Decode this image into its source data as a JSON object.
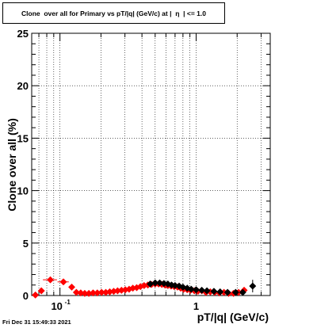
{
  "chart_data": {
    "type": "scatter",
    "title": "Clone  over all for Primary vs pT/|q| (GeV/c) at |  η  | <= 1.0",
    "xlabel": "pT/|q| (GeV/c)",
    "ylabel": "Clone  over all (%)",
    "x_scale": "log",
    "xlim": [
      0.062,
      3.5
    ],
    "ylim": [
      0,
      25
    ],
    "grid": true,
    "y_ticks": [
      0,
      5,
      10,
      15,
      20,
      25
    ],
    "y_tick_labels": [
      "0",
      "5",
      "10",
      "15",
      "20",
      "25"
    ],
    "x_ticks": [
      0.1,
      1
    ],
    "x_tick_labels": [
      "10^-1",
      "1"
    ],
    "series": [
      {
        "marker_color": "#ff0000",
        "x": [
          0.066,
          0.073,
          0.085,
          0.106,
          0.122,
          0.132,
          0.142,
          0.152,
          0.163,
          0.175,
          0.188,
          0.202,
          0.217,
          0.232,
          0.248,
          0.265,
          0.283,
          0.302,
          0.322,
          0.343,
          0.366,
          0.39,
          0.415,
          0.442,
          0.47,
          0.5,
          0.53,
          0.56,
          0.59,
          0.62,
          0.655,
          0.69,
          0.73,
          0.77,
          0.81,
          0.86,
          0.91,
          0.97,
          1.03,
          1.1,
          1.18,
          1.27,
          1.37,
          1.48,
          1.6,
          1.73,
          1.88,
          2.05,
          2.25
        ],
        "y": [
          0.05,
          0.45,
          1.5,
          1.3,
          0.8,
          0.3,
          0.25,
          0.2,
          0.2,
          0.25,
          0.25,
          0.3,
          0.3,
          0.35,
          0.4,
          0.45,
          0.5,
          0.55,
          0.6,
          0.7,
          0.75,
          0.85,
          0.95,
          1.0,
          1.05,
          1.1,
          1.1,
          1.05,
          1.0,
          0.95,
          0.9,
          0.85,
          0.8,
          0.7,
          0.6,
          0.55,
          0.5,
          0.45,
          0.4,
          0.45,
          0.3,
          0.35,
          0.3,
          0.25,
          0.3,
          0.2,
          0.2,
          0.3,
          0.5
        ],
        "xerr_low": [
          0.003,
          0.004,
          0.01,
          0.01,
          0.005,
          0,
          0,
          0,
          0,
          0,
          0,
          0,
          0,
          0,
          0,
          0,
          0,
          0,
          0,
          0,
          0,
          0,
          0,
          0,
          0,
          0,
          0,
          0,
          0,
          0,
          0,
          0,
          0,
          0,
          0,
          0,
          0,
          0,
          0,
          0,
          0,
          0,
          0,
          0,
          0,
          0,
          0,
          0,
          0
        ],
        "xerr_high": [
          0.003,
          0.004,
          0.01,
          0.01,
          0.005,
          0,
          0,
          0,
          0,
          0,
          0,
          0,
          0,
          0,
          0,
          0,
          0,
          0,
          0,
          0,
          0,
          0,
          0,
          0,
          0,
          0,
          0,
          0,
          0,
          0,
          0,
          0,
          0,
          0,
          0,
          0,
          0,
          0,
          0,
          0,
          0,
          0,
          0,
          0,
          0,
          0,
          0,
          0,
          0
        ]
      },
      {
        "marker_color": "#000000",
        "x": [
          0.46,
          0.5,
          0.54,
          0.58,
          0.62,
          0.66,
          0.7,
          0.75,
          0.8,
          0.86,
          0.92,
          1.0,
          1.1,
          1.2,
          1.35,
          1.5,
          1.7,
          1.95,
          2.2,
          2.6
        ],
        "y": [
          1.1,
          1.2,
          1.2,
          1.15,
          1.1,
          1.0,
          0.95,
          0.9,
          0.8,
          0.7,
          0.6,
          0.55,
          0.5,
          0.45,
          0.4,
          0.35,
          0.3,
          0.3,
          0.3,
          0.9
        ],
        "yerr": [
          0,
          0,
          0,
          0,
          0,
          0,
          0,
          0,
          0,
          0,
          0,
          0,
          0,
          0,
          0,
          0,
          0,
          0,
          0,
          0.6
        ]
      }
    ]
  },
  "footer": {
    "timestamp": "Fri Dec 31 15:49:33 2021"
  }
}
